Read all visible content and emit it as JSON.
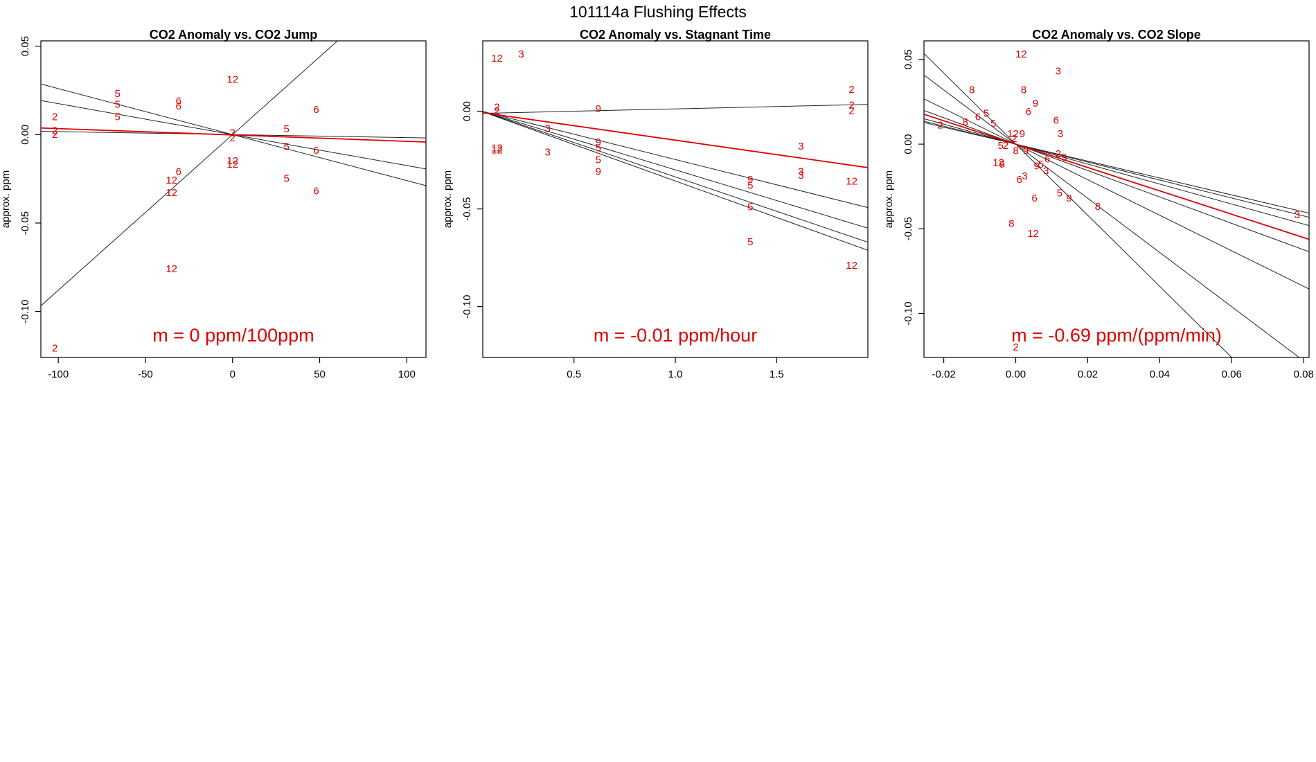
{
  "figure": {
    "title": "101114a   Flushing Effects",
    "colors": {
      "points": "#e00000",
      "fit": "#e00000",
      "lines": "#222222",
      "axis": "#000000"
    }
  },
  "chart_data": [
    {
      "type": "scatter",
      "title": "CO2 Anomaly vs. CO2 Jump",
      "xlabel": "",
      "ylabel": "approx. ppm",
      "xlim": [
        -110,
        111
      ],
      "ylim": [
        -0.126,
        0.053
      ],
      "xticks": [
        -100,
        -50,
        0,
        50,
        100
      ],
      "yticks": [
        -0.1,
        -0.05,
        0.0,
        0.05
      ],
      "xtick_labels": [
        "-100",
        "-50",
        "0",
        "50",
        "100"
      ],
      "ytick_labels": [
        "-0.10",
        "-0.05",
        "0.00",
        "0.05"
      ],
      "annotation": "m = 0 ppm/100ppm",
      "points": [
        {
          "x": 0,
          "y": 0.031,
          "label": "12"
        },
        {
          "x": -66,
          "y": 0.023,
          "label": "5"
        },
        {
          "x": -66,
          "y": 0.017,
          "label": "5"
        },
        {
          "x": -66,
          "y": 0.01,
          "label": "5"
        },
        {
          "x": -31,
          "y": 0.019,
          "label": "6"
        },
        {
          "x": -31,
          "y": 0.016,
          "label": "6"
        },
        {
          "x": -102,
          "y": 0.01,
          "label": "2"
        },
        {
          "x": -102,
          "y": 0.002,
          "label": "2"
        },
        {
          "x": -102,
          "y": 0.0,
          "label": "2"
        },
        {
          "x": 0,
          "y": 0.001,
          "label": "2"
        },
        {
          "x": 0,
          "y": -0.002,
          "label": "2"
        },
        {
          "x": 48,
          "y": 0.014,
          "label": "6"
        },
        {
          "x": 31,
          "y": 0.003,
          "label": "5"
        },
        {
          "x": 31,
          "y": -0.007,
          "label": "5"
        },
        {
          "x": 48,
          "y": -0.009,
          "label": "6"
        },
        {
          "x": 0,
          "y": -0.015,
          "label": "12"
        },
        {
          "x": 0,
          "y": -0.017,
          "label": "12"
        },
        {
          "x": -31,
          "y": -0.021,
          "label": "6"
        },
        {
          "x": -35,
          "y": -0.026,
          "label": "12"
        },
        {
          "x": 31,
          "y": -0.025,
          "label": "5"
        },
        {
          "x": -35,
          "y": -0.033,
          "label": "12"
        },
        {
          "x": 48,
          "y": -0.032,
          "label": "6"
        },
        {
          "x": -35,
          "y": -0.076,
          "label": "12"
        },
        {
          "x": -102,
          "y": -0.121,
          "label": "2"
        }
      ],
      "lines": [
        {
          "slope": 0.00088,
          "intercept": 0.0,
          "fit": false
        },
        {
          "slope": -0.00026,
          "intercept": 0.0,
          "fit": false
        },
        {
          "slope": -0.000175,
          "intercept": 0.0,
          "fit": false
        },
        {
          "slope": -1.7e-05,
          "intercept": 0.0,
          "fit": false
        }
      ],
      "fit_line": {
        "slope": -3.6e-05,
        "intercept": -0.0002
      }
    },
    {
      "type": "scatter",
      "title": "CO2 Anomaly vs. Stagnant Time",
      "xlabel": "",
      "ylabel": "approx. ppm",
      "xlim": [
        0.05,
        1.95
      ],
      "ylim": [
        -0.126,
        0.036
      ],
      "xticks": [
        0.5,
        1.0,
        1.5
      ],
      "yticks": [
        -0.1,
        -0.05,
        0.0
      ],
      "xtick_labels": [
        "0.5",
        "1.0",
        "1.5"
      ],
      "ytick_labels": [
        "-0.10",
        "-0.05",
        "0.00"
      ],
      "annotation": "m = -0.01 ppm/hour",
      "points": [
        {
          "x": 0.12,
          "y": 0.027,
          "label": "12"
        },
        {
          "x": 0.24,
          "y": 0.029,
          "label": "3"
        },
        {
          "x": 0.12,
          "y": 0.002,
          "label": "2"
        },
        {
          "x": 0.12,
          "y": 0.0,
          "label": "2"
        },
        {
          "x": 0.62,
          "y": 0.001,
          "label": "9"
        },
        {
          "x": 0.37,
          "y": -0.009,
          "label": "3"
        },
        {
          "x": 0.12,
          "y": -0.019,
          "label": "12"
        },
        {
          "x": 0.12,
          "y": -0.02,
          "label": "12"
        },
        {
          "x": 0.37,
          "y": -0.021,
          "label": "3"
        },
        {
          "x": 0.62,
          "y": -0.016,
          "label": "9"
        },
        {
          "x": 0.62,
          "y": -0.019,
          "label": "5"
        },
        {
          "x": 0.62,
          "y": -0.025,
          "label": "5"
        },
        {
          "x": 0.62,
          "y": -0.031,
          "label": "9"
        },
        {
          "x": 1.62,
          "y": -0.018,
          "label": "3"
        },
        {
          "x": 1.62,
          "y": -0.031,
          "label": "3"
        },
        {
          "x": 1.62,
          "y": -0.033,
          "label": "3"
        },
        {
          "x": 1.37,
          "y": -0.035,
          "label": "9"
        },
        {
          "x": 1.37,
          "y": -0.038,
          "label": "5"
        },
        {
          "x": 1.37,
          "y": -0.049,
          "label": "5"
        },
        {
          "x": 1.37,
          "y": -0.067,
          "label": "5"
        },
        {
          "x": 1.87,
          "y": 0.011,
          "label": "2"
        },
        {
          "x": 1.87,
          "y": 0.003,
          "label": "2"
        },
        {
          "x": 1.87,
          "y": 0.0,
          "label": "2"
        },
        {
          "x": 1.87,
          "y": -0.036,
          "label": "12"
        },
        {
          "x": 1.87,
          "y": -0.079,
          "label": "12"
        }
      ],
      "lines": [
        {
          "slope": 0.0024,
          "intercept": -0.0012,
          "fit": false
        },
        {
          "slope": -0.0352,
          "intercept": 0.0016,
          "fit": false
        },
        {
          "slope": -0.0259,
          "intercept": 0.0012,
          "fit": false
        },
        {
          "slope": -0.0314,
          "intercept": 0.0014,
          "fit": false
        },
        {
          "slope": -0.0373,
          "intercept": 0.0016,
          "fit": false
        }
      ],
      "fit_line": {
        "slope": -0.0148,
        "intercept": 0.0
      }
    },
    {
      "type": "scatter",
      "title": "CO2 Anomaly vs. CO2 Slope",
      "xlabel": "",
      "ylabel": "approx. ppm",
      "xlim": [
        -0.0255,
        0.0815
      ],
      "ylim": [
        -0.126,
        0.061
      ],
      "xticks": [
        -0.02,
        0.0,
        0.02,
        0.04,
        0.06,
        0.08
      ],
      "yticks": [
        -0.1,
        -0.05,
        0.0,
        0.05
      ],
      "xtick_labels": [
        "-0.02",
        "0.00",
        "0.02",
        "0.04",
        "0.06",
        "0.08"
      ],
      "ytick_labels": [
        "-0.10",
        "-0.05",
        "0.00",
        "0.05"
      ],
      "annotation": "m = -0.69 ppm/(ppm/min)",
      "points": [
        {
          "x": 0.0015,
          "y": 0.053,
          "label": "12"
        },
        {
          "x": 0.0118,
          "y": 0.043,
          "label": "3"
        },
        {
          "x": -0.0122,
          "y": 0.032,
          "label": "8"
        },
        {
          "x": 0.0022,
          "y": 0.032,
          "label": "8"
        },
        {
          "x": 0.0055,
          "y": 0.024,
          "label": "9"
        },
        {
          "x": 0.0035,
          "y": 0.019,
          "label": "6"
        },
        {
          "x": -0.0082,
          "y": 0.018,
          "label": "5"
        },
        {
          "x": -0.0105,
          "y": 0.016,
          "label": "6"
        },
        {
          "x": -0.0062,
          "y": 0.012,
          "label": "5"
        },
        {
          "x": -0.014,
          "y": 0.013,
          "label": "8"
        },
        {
          "x": 0.0112,
          "y": 0.014,
          "label": "6"
        },
        {
          "x": -0.021,
          "y": 0.011,
          "label": "2"
        },
        {
          "x": -0.0008,
          "y": 0.006,
          "label": "12"
        },
        {
          "x": 0.0018,
          "y": 0.006,
          "label": "9"
        },
        {
          "x": 0.0124,
          "y": 0.006,
          "label": "3"
        },
        {
          "x": -0.0004,
          "y": 0.003,
          "label": "2"
        },
        {
          "x": -0.0042,
          "y": -0.001,
          "label": "5"
        },
        {
          "x": -0.0028,
          "y": -0.001,
          "label": "2"
        },
        {
          "x": 0.0,
          "y": -0.004,
          "label": "8"
        },
        {
          "x": 0.0028,
          "y": -0.004,
          "label": "9"
        },
        {
          "x": 0.0118,
          "y": -0.006,
          "label": "2"
        },
        {
          "x": 0.0088,
          "y": -0.009,
          "label": "6"
        },
        {
          "x": 0.0135,
          "y": -0.008,
          "label": "5"
        },
        {
          "x": -0.0048,
          "y": -0.011,
          "label": "12"
        },
        {
          "x": -0.0038,
          "y": -0.012,
          "label": "9"
        },
        {
          "x": 0.007,
          "y": -0.012,
          "label": "5"
        },
        {
          "x": 0.0058,
          "y": -0.013,
          "label": "9"
        },
        {
          "x": 0.0084,
          "y": -0.016,
          "label": "3"
        },
        {
          "x": 0.0025,
          "y": -0.019,
          "label": "3"
        },
        {
          "x": 0.001,
          "y": -0.021,
          "label": "6"
        },
        {
          "x": 0.0122,
          "y": -0.029,
          "label": "5"
        },
        {
          "x": 0.0148,
          "y": -0.032,
          "label": "9"
        },
        {
          "x": 0.0052,
          "y": -0.032,
          "label": "6"
        },
        {
          "x": 0.0228,
          "y": -0.037,
          "label": "8"
        },
        {
          "x": -0.0012,
          "y": -0.047,
          "label": "8"
        },
        {
          "x": 0.0048,
          "y": -0.053,
          "label": "12"
        },
        {
          "x": 0.0,
          "y": -0.12,
          "label": "2"
        },
        {
          "x": 0.0782,
          "y": -0.042,
          "label": "3"
        }
      ],
      "lines": [
        {
          "slope": -2.1,
          "intercept": 0.0,
          "fit": false
        },
        {
          "slope": -1.6,
          "intercept": 0.0,
          "fit": false
        },
        {
          "slope": -1.05,
          "intercept": 0.0,
          "fit": false
        },
        {
          "slope": -0.78,
          "intercept": 0.0,
          "fit": false
        },
        {
          "slope": -0.59,
          "intercept": 0.0,
          "fit": false
        },
        {
          "slope": -0.53,
          "intercept": 0.0,
          "fit": false
        },
        {
          "slope": -0.5,
          "intercept": 0.0,
          "fit": false
        }
      ],
      "fit_line": {
        "slope": -0.69,
        "intercept": 0.0
      }
    }
  ]
}
